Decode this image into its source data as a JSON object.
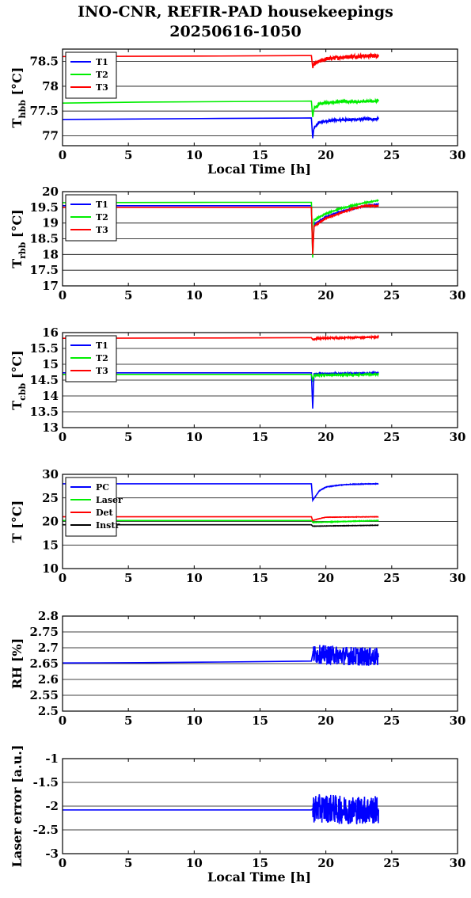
{
  "title_line1": "INO-CNR, REFIR-PAD housekeepings",
  "title_line2": "20250616-1050",
  "colors": {
    "blue": "#0000ff",
    "green": "#00ee00",
    "red": "#ff0000",
    "black": "#000000"
  },
  "chart_data": [
    {
      "type": "line",
      "ylabel_main": "T",
      "ylabel_sub": "hbb",
      "ylabel_unit": " [°C]",
      "xlabel": "Local Time [h]",
      "xlim": [
        0,
        30
      ],
      "ylim": [
        76.8,
        78.75
      ],
      "xticks": [
        "0",
        "5",
        "10",
        "15",
        "20",
        "25",
        "30"
      ],
      "yticks": [
        77,
        77.5,
        78,
        78.5
      ],
      "ytick_labels": [
        "77",
        "77.5",
        "78",
        "78.5"
      ],
      "grid": true,
      "legend_loc": "top-left",
      "series": [
        {
          "name": "T1",
          "color": "#0000ff",
          "x": [
            0,
            12,
            18.9,
            19.0,
            19.1,
            19.5,
            20,
            21,
            22,
            24
          ],
          "y": [
            77.33,
            77.35,
            77.36,
            76.95,
            77.15,
            77.27,
            77.3,
            77.32,
            77.33,
            77.34
          ],
          "noise": 0.025
        },
        {
          "name": "T2",
          "color": "#00ee00",
          "x": [
            0,
            6,
            18.9,
            19.0,
            19.1,
            19.5,
            20,
            21,
            22,
            24
          ],
          "y": [
            77.66,
            77.68,
            77.7,
            77.38,
            77.55,
            77.64,
            77.67,
            77.69,
            77.69,
            77.7
          ],
          "noise": 0.025
        },
        {
          "name": "T3",
          "color": "#ff0000",
          "x": [
            0,
            12,
            18.9,
            19.0,
            19.1,
            19.5,
            20,
            21,
            22,
            24
          ],
          "y": [
            78.6,
            78.61,
            78.62,
            78.38,
            78.45,
            78.5,
            78.55,
            78.58,
            78.6,
            78.62
          ],
          "noise": 0.04
        }
      ]
    },
    {
      "type": "line",
      "ylabel_main": "T",
      "ylabel_sub": "rbb",
      "ylabel_unit": " [°C]",
      "xlabel": "",
      "xlim": [
        0,
        30
      ],
      "ylim": [
        17,
        20
      ],
      "xticks": [
        "0",
        "5",
        "10",
        "15",
        "20",
        "25",
        "30"
      ],
      "yticks": [
        17,
        17.5,
        18,
        18.5,
        19,
        19.5,
        20
      ],
      "ytick_labels": [
        "17",
        "17.5",
        "18",
        "18.5",
        "19",
        "19.5",
        "20"
      ],
      "grid": true,
      "legend_loc": "top-left",
      "series": [
        {
          "name": "T1",
          "color": "#0000ff",
          "x": [
            0,
            12,
            18.9,
            19.0,
            19.1,
            20,
            21,
            22,
            23,
            24
          ],
          "y": [
            19.55,
            19.55,
            19.55,
            18.1,
            18.95,
            19.2,
            19.35,
            19.45,
            19.55,
            19.6
          ],
          "noise": 0.015
        },
        {
          "name": "T2",
          "color": "#00ee00",
          "x": [
            0,
            12,
            18.9,
            19.0,
            19.1,
            20,
            21,
            22,
            23,
            24
          ],
          "y": [
            19.65,
            19.66,
            19.66,
            17.9,
            19.1,
            19.3,
            19.45,
            19.55,
            19.65,
            19.72
          ],
          "noise": 0.015
        },
        {
          "name": "T3",
          "color": "#ff0000",
          "x": [
            0,
            12,
            18.9,
            19.0,
            19.1,
            20,
            21,
            22,
            23,
            24
          ],
          "y": [
            19.5,
            19.5,
            19.5,
            18.0,
            18.9,
            19.15,
            19.3,
            19.45,
            19.55,
            19.55
          ],
          "noise": 0.015
        }
      ]
    },
    {
      "type": "line",
      "ylabel_main": "T",
      "ylabel_sub": "cbb",
      "ylabel_unit": " [°C]",
      "xlabel": "",
      "xlim": [
        0,
        30
      ],
      "ylim": [
        13,
        16
      ],
      "xticks": [
        "0",
        "5",
        "10",
        "15",
        "20",
        "25",
        "30"
      ],
      "yticks": [
        13,
        13.5,
        14,
        14.5,
        15,
        15.5,
        16
      ],
      "ytick_labels": [
        "13",
        "13.5",
        "14",
        "14.5",
        "15",
        "15.5",
        "16"
      ],
      "grid": true,
      "legend_loc": "top-left",
      "series": [
        {
          "name": "T1",
          "color": "#0000ff",
          "x": [
            0,
            18.9,
            19.0,
            19.1,
            24
          ],
          "y": [
            14.73,
            14.73,
            13.6,
            14.7,
            14.72
          ],
          "noise": 0.02
        },
        {
          "name": "T2",
          "color": "#00ee00",
          "x": [
            0,
            18.9,
            19.0,
            19.1,
            24
          ],
          "y": [
            14.68,
            14.68,
            14.5,
            14.65,
            14.68
          ],
          "noise": 0.02
        },
        {
          "name": "T3",
          "color": "#ff0000",
          "x": [
            0,
            12,
            18.9,
            19.0,
            19.5,
            24
          ],
          "y": [
            15.82,
            15.83,
            15.84,
            15.78,
            15.82,
            15.86
          ],
          "noise": 0.02
        }
      ]
    },
    {
      "type": "line",
      "ylabel_main": "T",
      "ylabel_sub": "",
      "ylabel_unit": " [°C]",
      "xlabel": "",
      "xlim": [
        0,
        30
      ],
      "ylim": [
        10,
        30
      ],
      "xticks": [
        "0",
        "5",
        "10",
        "15",
        "20",
        "25",
        "30"
      ],
      "yticks": [
        10,
        15,
        20,
        25,
        30
      ],
      "ytick_labels": [
        "10",
        "15",
        "20",
        "25",
        "30"
      ],
      "grid": true,
      "legend_loc": "top-left",
      "series": [
        {
          "name": "PC",
          "color": "#0000ff",
          "x": [
            0,
            18.9,
            19.0,
            19.5,
            20,
            21,
            22,
            24
          ],
          "y": [
            28.0,
            28.0,
            24.5,
            26.5,
            27.3,
            27.7,
            27.9,
            28.0
          ],
          "noise": 0.05
        },
        {
          "name": "Laser",
          "color": "#00ee00",
          "x": [
            0,
            18.9,
            19.0,
            24
          ],
          "y": [
            20.2,
            20.2,
            19.8,
            20.2
          ],
          "noise": 0.05
        },
        {
          "name": "Det",
          "color": "#ff0000",
          "x": [
            0,
            18.9,
            19.0,
            19.5,
            20,
            24
          ],
          "y": [
            21.0,
            21.0,
            20.2,
            20.6,
            20.9,
            21.0
          ],
          "noise": 0.03
        },
        {
          "name": "Instr",
          "color": "#000000",
          "x": [
            0,
            18.9,
            19.0,
            24
          ],
          "y": [
            19.3,
            19.3,
            19.0,
            19.2
          ],
          "noise": 0.03
        }
      ]
    },
    {
      "type": "line",
      "ylabel_main": "RH [%]",
      "ylabel_sub": "",
      "ylabel_unit": "",
      "xlabel": "",
      "xlim": [
        0,
        30
      ],
      "ylim": [
        2.5,
        2.8
      ],
      "xticks": [
        "0",
        "5",
        "10",
        "15",
        "20",
        "25",
        "30"
      ],
      "yticks": [
        2.5,
        2.55,
        2.6,
        2.65,
        2.7,
        2.75,
        2.8
      ],
      "ytick_labels": [
        "2.5",
        "2.55",
        "2.6",
        "2.65",
        "2.7",
        "2.75",
        "2.8"
      ],
      "grid": true,
      "legend_loc": "none",
      "series": [
        {
          "name": "",
          "color": "#0000ff",
          "x": [
            0,
            6,
            12,
            18.9,
            19.0,
            24
          ],
          "y": [
            2.652,
            2.653,
            2.655,
            2.658,
            2.68,
            2.67
          ],
          "noise": 0.03
        }
      ]
    },
    {
      "type": "line",
      "ylabel_main": "Laser error [a.u.]",
      "ylabel_sub": "",
      "ylabel_unit": "",
      "xlabel": "Local Time [h]",
      "xlim": [
        0,
        30
      ],
      "ylim": [
        -3,
        -1
      ],
      "xticks": [
        "0",
        "5",
        "10",
        "15",
        "20",
        "25",
        "30"
      ],
      "yticks": [
        -3,
        -2.5,
        -2,
        -1.5,
        -1
      ],
      "ytick_labels": [
        "-3",
        "-2.5",
        "-2",
        "-1.5",
        "-1"
      ],
      "grid": true,
      "legend_loc": "none",
      "series": [
        {
          "name": "",
          "color": "#0000ff",
          "x": [
            0,
            18.9,
            19.0,
            20.5,
            21,
            24
          ],
          "y": [
            -2.08,
            -2.08,
            -2.05,
            -2.05,
            -2.08,
            -2.08
          ],
          "noise": 0.3
        }
      ]
    }
  ]
}
